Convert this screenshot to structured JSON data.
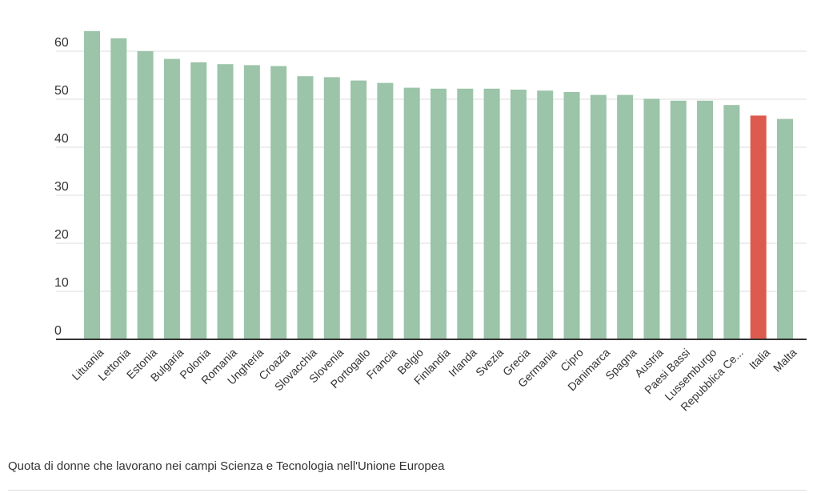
{
  "chart_data": {
    "type": "bar",
    "categories": [
      "Lituania",
      "Lettonia",
      "Estonia",
      "Bulgaria",
      "Polonia",
      "Romania",
      "Ungheria",
      "Croazia",
      "Slovacchia",
      "Slovenia",
      "Portogallo",
      "Francia",
      "Belgio",
      "Finlandia",
      "Irlanda",
      "Svezia",
      "Grecia",
      "Germania",
      "Cipro",
      "Danimarca",
      "Spagna",
      "Austria",
      "Paesi Bassi",
      "Lussemburgo",
      "Repubblica Ce...",
      "Italia",
      "Malta"
    ],
    "values": [
      64.2,
      62.7,
      60.0,
      58.4,
      57.7,
      57.3,
      57.1,
      56.9,
      54.8,
      54.6,
      53.9,
      53.4,
      52.4,
      52.2,
      52.2,
      52.2,
      52.0,
      51.8,
      51.5,
      50.9,
      50.9,
      50.1,
      49.7,
      49.7,
      48.8,
      46.6,
      45.9
    ],
    "highlight": "Italia",
    "ylim": [
      0,
      66
    ],
    "yticks": [
      0,
      10,
      20,
      30,
      40,
      50,
      60
    ],
    "grid": true,
    "colors": {
      "bar": "#9bc4a8",
      "highlight": "#dd5a4e",
      "grid": "#dddddd",
      "axis": "#333333",
      "text": "#333333"
    }
  },
  "caption": "Quota di donne che lavorano nei campi Scienza e Tecnologia nell'Unione Europea"
}
